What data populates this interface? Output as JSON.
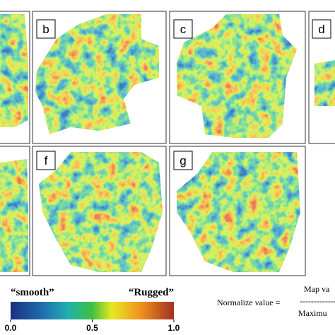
{
  "panels": [
    {
      "label": "b"
    },
    {
      "label": "c"
    },
    {
      "label": "d"
    },
    {
      "label": "f"
    },
    {
      "label": "g"
    }
  ],
  "colorbar": {
    "left_label": "“smooth”",
    "right_label": "“Rugged”",
    "lim": [
      0,
      1
    ],
    "ticks": [
      {
        "value": 0,
        "label": "0.0"
      },
      0.5,
      {
        "value": 1,
        "label": "1.0"
      }
    ]
  },
  "formula": {
    "lhs": "Normalize value =",
    "numerator": "Map va",
    "divider": "-----------------",
    "denominator": "Maximu"
  }
}
